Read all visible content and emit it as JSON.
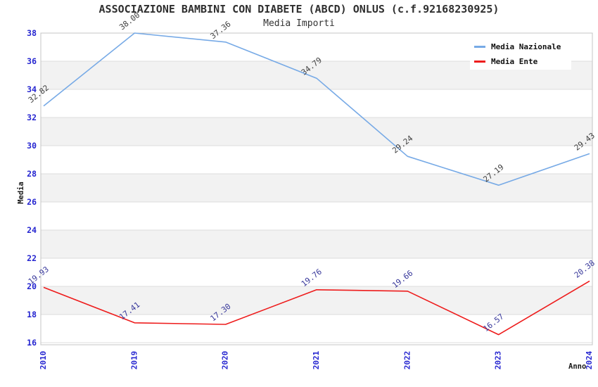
{
  "header": {
    "title": "ASSOCIAZIONE BAMBINI CON DIABETE (ABCD) ONLUS (c.f.92168230925)",
    "subtitle": "Media Importi"
  },
  "legend": {
    "items": [
      {
        "label": "Media Nazionale",
        "color": "#77aae6"
      },
      {
        "label": "Media Ente",
        "color": "#ee1c1c"
      }
    ]
  },
  "chart_data": {
    "type": "line",
    "x": [
      "2010",
      "2019",
      "2020",
      "2021",
      "2022",
      "2023",
      "2024"
    ],
    "series": [
      {
        "name": "Media Nazionale",
        "color": "#77aae6",
        "label_color": "#404040",
        "values": [
          32.82,
          38.0,
          37.36,
          34.79,
          29.24,
          27.19,
          29.43
        ]
      },
      {
        "name": "Media Ente",
        "color": "#ee1c1c",
        "label_color": "#38389b",
        "values": [
          19.93,
          17.41,
          17.3,
          19.76,
          19.66,
          16.57,
          20.38
        ]
      }
    ],
    "xlabel": "Anno",
    "ylabel": "Media",
    "ylim": [
      16,
      38
    ],
    "ytick_step": 2,
    "grid": true,
    "banded_background": true,
    "legend_position": "top-right",
    "point_labels_decimals": 2,
    "styles": {
      "tick_color": "#2525d0",
      "band_color": "#f2f2f2",
      "grid_color": "#dcdcdc",
      "border_color": "#c4c4c4",
      "background": "#ffffff"
    }
  }
}
